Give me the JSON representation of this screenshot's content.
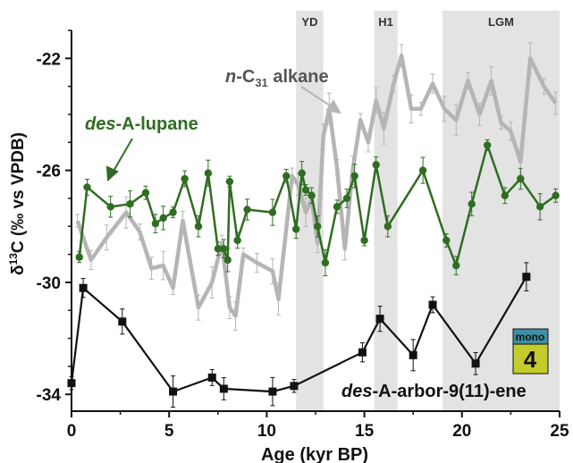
{
  "chart_data": {
    "type": "line",
    "xlabel": "Age (kyr BP)",
    "ylabel_parts": {
      "pre": "δ",
      "sup": "13",
      "post": "C (‰ vs VPDB)"
    },
    "xlim": [
      0,
      25
    ],
    "ylim": [
      -34.6,
      -21.0
    ],
    "y_reversed": true,
    "xticks": [
      0,
      5,
      10,
      15,
      20,
      25
    ],
    "yticks": [
      -22,
      -26,
      -30,
      -34
    ],
    "shaded_intervals": [
      {
        "label": "YD",
        "start": 11.5,
        "end": 12.9
      },
      {
        "label": "H1",
        "start": 15.5,
        "end": 16.7
      },
      {
        "label": "LGM",
        "start": 19.0,
        "end": 25.0
      }
    ],
    "series": [
      {
        "name_parts": {
          "italic": "n",
          "text1": "-C",
          "sub": "31",
          "text2": " alkane"
        },
        "color": "#b5b5b5",
        "points": [
          [
            0.3,
            -27.8
          ],
          [
            1.0,
            -29.2
          ],
          [
            1.8,
            -28.4
          ],
          [
            2.8,
            -27.5
          ],
          [
            3.5,
            -28.2
          ],
          [
            4.1,
            -29.5
          ],
          [
            4.7,
            -29.4
          ],
          [
            5.2,
            -30.2
          ],
          [
            5.7,
            -27.8
          ],
          [
            6.5,
            -30.9
          ],
          [
            7.2,
            -30.0
          ],
          [
            7.7,
            -28.6
          ],
          [
            8.1,
            -30.9
          ],
          [
            8.4,
            -31.2
          ],
          [
            8.8,
            -29.0
          ],
          [
            9.5,
            -29.3
          ],
          [
            10.3,
            -29.6
          ],
          [
            10.6,
            -30.6
          ],
          [
            11.3,
            -26.2
          ],
          [
            11.6,
            -26.5
          ],
          [
            12.0,
            -27.5
          ],
          [
            12.3,
            -27.0
          ],
          [
            12.6,
            -28.6
          ],
          [
            12.9,
            -24.8
          ],
          [
            13.2,
            -23.8
          ],
          [
            13.6,
            -25.9
          ],
          [
            14.0,
            -28.8
          ],
          [
            14.4,
            -26.0
          ],
          [
            14.8,
            -24.2
          ],
          [
            15.2,
            -25.0
          ],
          [
            15.6,
            -23.5
          ],
          [
            16.0,
            -24.5
          ],
          [
            16.5,
            -22.9
          ],
          [
            16.9,
            -21.9
          ],
          [
            17.4,
            -23.8
          ],
          [
            17.9,
            -23.8
          ],
          [
            18.5,
            -22.9
          ],
          [
            19.1,
            -23.8
          ],
          [
            19.7,
            -24.2
          ],
          [
            20.3,
            -22.8
          ],
          [
            20.9,
            -24.0
          ],
          [
            21.5,
            -22.8
          ],
          [
            22.0,
            -24.3
          ],
          [
            22.5,
            -24.6
          ],
          [
            23.0,
            -25.7
          ],
          [
            23.5,
            -22.0
          ],
          [
            24.2,
            -23.0
          ],
          [
            24.8,
            -23.6
          ]
        ]
      },
      {
        "name_parts": {
          "italic": "des",
          "text1": "-A-lupane",
          "sub": "",
          "text2": ""
        },
        "color": "#2f6d22",
        "points": [
          [
            0.4,
            -29.1
          ],
          [
            0.8,
            -26.6
          ],
          [
            2.0,
            -27.3
          ],
          [
            3.0,
            -27.2
          ],
          [
            3.8,
            -26.8
          ],
          [
            4.3,
            -27.9
          ],
          [
            4.7,
            -27.7
          ],
          [
            5.2,
            -27.5
          ],
          [
            5.8,
            -26.3
          ],
          [
            6.5,
            -28.0
          ],
          [
            7.0,
            -26.1
          ],
          [
            7.5,
            -28.8
          ],
          [
            7.8,
            -28.8
          ],
          [
            8.0,
            -29.2
          ],
          [
            8.1,
            -26.4
          ],
          [
            8.5,
            -28.5
          ],
          [
            9.0,
            -27.4
          ],
          [
            10.3,
            -27.5
          ],
          [
            11.0,
            -26.2
          ],
          [
            11.5,
            -28.1
          ],
          [
            11.8,
            -26.1
          ],
          [
            12.0,
            -26.7
          ],
          [
            12.3,
            -26.9
          ],
          [
            12.6,
            -28.0
          ],
          [
            13.0,
            -29.3
          ],
          [
            13.6,
            -27.3
          ],
          [
            14.1,
            -27.0
          ],
          [
            14.5,
            -26.2
          ],
          [
            15.0,
            -28.5
          ],
          [
            15.6,
            -25.8
          ],
          [
            16.2,
            -28.0
          ],
          [
            18.0,
            -26.0
          ],
          [
            19.2,
            -28.5
          ],
          [
            19.7,
            -29.4
          ],
          [
            20.5,
            -27.2
          ],
          [
            21.3,
            -25.1
          ],
          [
            22.2,
            -26.9
          ],
          [
            23.0,
            -26.3
          ],
          [
            24.0,
            -27.3
          ],
          [
            24.8,
            -26.9
          ]
        ]
      },
      {
        "name_parts": {
          "italic": "des",
          "text1": "-A-arbor-9(11)-ene",
          "sub": "",
          "text2": ""
        },
        "color": "#111111",
        "points": [
          [
            0.0,
            -33.6
          ],
          [
            0.6,
            -30.2
          ],
          [
            2.6,
            -31.4
          ],
          [
            5.2,
            -33.9
          ],
          [
            7.2,
            -33.4
          ],
          [
            7.8,
            -33.8
          ],
          [
            10.3,
            -33.9
          ],
          [
            11.4,
            -33.7
          ],
          [
            14.9,
            -32.5
          ],
          [
            15.8,
            -31.3
          ],
          [
            17.5,
            -32.6
          ],
          [
            18.5,
            -30.8
          ],
          [
            20.7,
            -32.9
          ],
          [
            23.3,
            -29.8
          ]
        ]
      }
    ],
    "badge": {
      "top": "mono",
      "number": "4"
    }
  }
}
